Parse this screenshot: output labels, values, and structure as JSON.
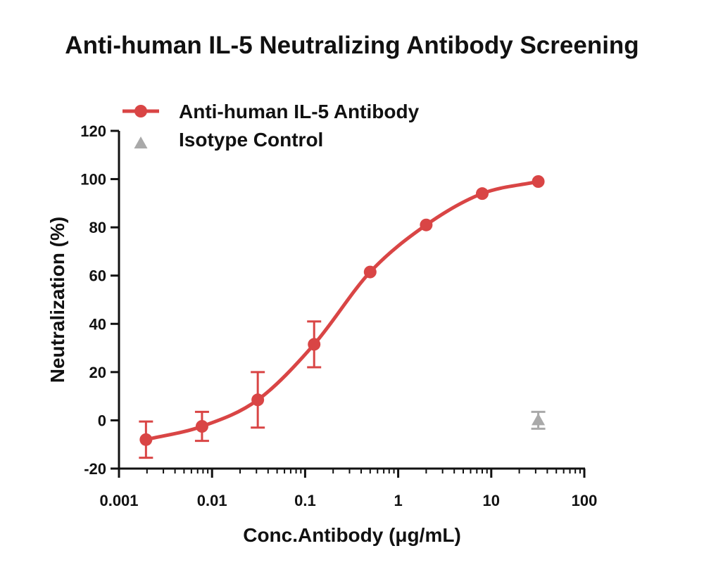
{
  "chart_data": {
    "type": "scatter",
    "title": "Anti-human IL-5 Neutralizing Antibody Screening",
    "xlabel": "Conc.Antibody (μg/mL)",
    "ylabel": "Neutralization (%)",
    "x_scale": "log",
    "xlim": [
      0.001,
      100
    ],
    "ylim": [
      -20,
      120
    ],
    "x_ticks": [
      "0.001",
      "0.01",
      "0.1",
      "1",
      "10",
      "100"
    ],
    "y_ticks": [
      "-20",
      "0",
      "20",
      "40",
      "60",
      "80",
      "100",
      "120"
    ],
    "legend_position": "top-left",
    "series": [
      {
        "name": "Anti-human IL-5 Antibody",
        "marker": "circle",
        "color": "#d94545",
        "fit": "sigmoidal",
        "x": [
          0.00195,
          0.0078,
          0.031,
          0.125,
          0.5,
          2,
          8,
          32
        ],
        "y": [
          -8,
          -2.5,
          8.5,
          31.5,
          61.5,
          81,
          94,
          99
        ],
        "error": [
          7.5,
          6,
          11.5,
          9.5,
          0,
          0,
          0,
          0
        ]
      },
      {
        "name": "Isotype Control",
        "marker": "triangle",
        "color": "#a9a9a9",
        "x": [
          32
        ],
        "y": [
          0
        ],
        "error": [
          3.5
        ]
      }
    ]
  }
}
